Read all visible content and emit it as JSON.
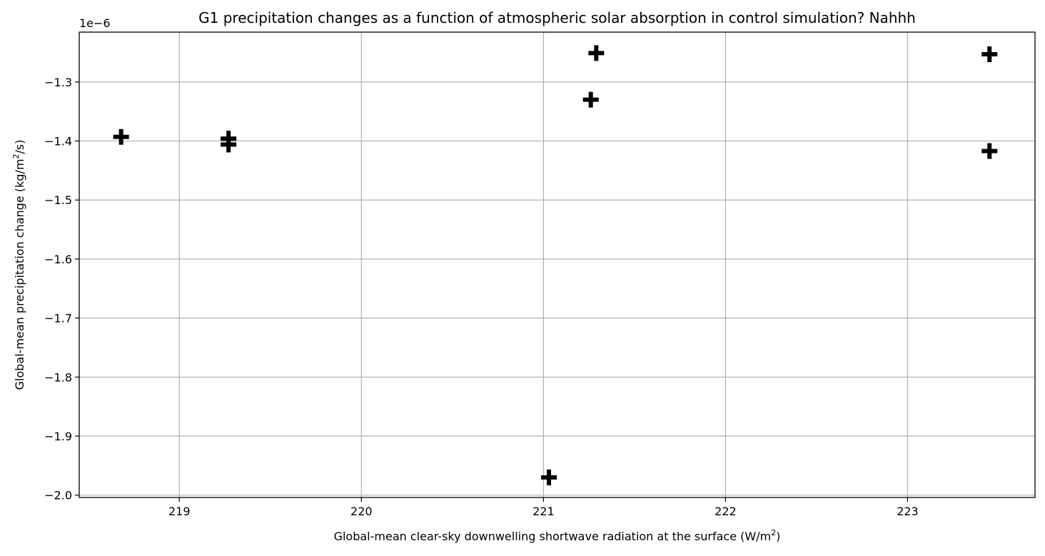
{
  "chart_data": {
    "type": "scatter",
    "title": "G1 precipitation changes as a function of atmospheric solar absorption in control simulation? Nahhh",
    "xlabel": "Global-mean clear-sky downwelling shortwave radiation at the surface (W/m",
    "xlabel_sup": "2",
    "xlabel_tail": ")",
    "ylabel": "Global-mean precipitation change (kg/m",
    "ylabel_sup": "2",
    "ylabel_tail": "/s)",
    "y_offset_label": "1e−6",
    "xlim": [
      218.45,
      223.7
    ],
    "ylim": [
      -2.004,
      -1.2155
    ],
    "x_ticks": [
      219,
      220,
      221,
      222,
      223
    ],
    "x_tick_labels": [
      "219",
      "220",
      "221",
      "222",
      "223"
    ],
    "y_ticks": [
      -2.0,
      -1.9,
      -1.8,
      -1.7,
      -1.6,
      -1.5,
      -1.4,
      -1.3
    ],
    "y_tick_labels": [
      "−2.0",
      "−1.9",
      "−1.8",
      "−1.7",
      "−1.6",
      "−1.5",
      "−1.4",
      "−1.3"
    ],
    "grid": true,
    "marker": "plus",
    "marker_color": "#000000",
    "points": [
      {
        "x": 218.68,
        "y": -1.393
      },
      {
        "x": 219.27,
        "y": -1.396
      },
      {
        "x": 219.27,
        "y": -1.406
      },
      {
        "x": 221.03,
        "y": -1.97
      },
      {
        "x": 221.26,
        "y": -1.33
      },
      {
        "x": 221.29,
        "y": -1.251
      },
      {
        "x": 223.45,
        "y": -1.253
      },
      {
        "x": 223.45,
        "y": -1.417
      }
    ]
  }
}
